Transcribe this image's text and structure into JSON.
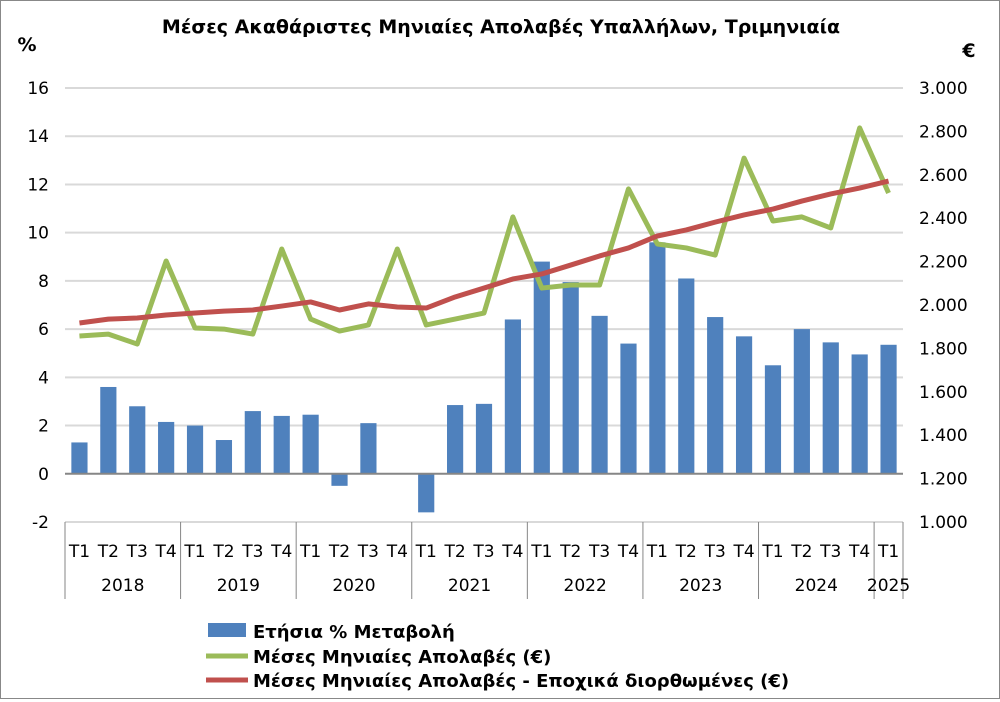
{
  "chart_data": {
    "type": "bar+line",
    "title": "Μέσες Ακαθάριστες Μηνιαίες Απολαβές Υπαλλήλων, Τριμηνιαία",
    "ylabel_left": "%",
    "ylabel_right": "€",
    "ylim_left": [
      -2,
      16
    ],
    "yticks_left": [
      "-2",
      "0",
      "2",
      "4",
      "6",
      "8",
      "10",
      "12",
      "14",
      "16"
    ],
    "ylim_right": [
      1000,
      3000
    ],
    "yticks_right": [
      "1.000",
      "1.200",
      "1.400",
      "1.600",
      "1.800",
      "2.000",
      "2.200",
      "2.400",
      "2.600",
      "2.800",
      "3.000"
    ],
    "grid": true,
    "quarters": [
      "T1",
      "T2",
      "T3",
      "T4",
      "T1",
      "T2",
      "T3",
      "T4",
      "T1",
      "T2",
      "T3",
      "T4",
      "T1",
      "T2",
      "T3",
      "T4",
      "T1",
      "T2",
      "T3",
      "T4",
      "T1",
      "T2",
      "T3",
      "T4",
      "T1",
      "T2",
      "T3",
      "T4",
      "T1"
    ],
    "years": [
      "2018",
      "2019",
      "2020",
      "2021",
      "2022",
      "2023",
      "2024",
      "2025"
    ],
    "series": [
      {
        "name": "Ετήσια % Μεταβολή",
        "type": "bar",
        "axis": "left",
        "color": "#4f81bd",
        "values": [
          1.3,
          3.6,
          2.8,
          2.15,
          2.0,
          1.4,
          2.6,
          2.4,
          2.45,
          -0.5,
          2.1,
          0,
          -1.6,
          2.85,
          2.9,
          6.4,
          8.8,
          7.95,
          6.55,
          5.4,
          9.6,
          8.1,
          6.5,
          5.7,
          4.5,
          6.0,
          5.45,
          4.95,
          5.35
        ]
      },
      {
        "name": "Μέσες Μηνιαίες Απολαβές (€)",
        "type": "line",
        "axis": "right",
        "color": "#9bbb59",
        "values": [
          1857,
          1866,
          1820,
          2203,
          1894,
          1889,
          1866,
          2258,
          1935,
          1880,
          1908,
          2258,
          1908,
          1935,
          1963,
          2406,
          2078,
          2092,
          2092,
          2535,
          2281,
          2263,
          2230,
          2677,
          2387,
          2406,
          2355,
          2816,
          2516
        ]
      },
      {
        "name": "Μέσες Μηνιαίες Απολαβές - Εποχικά διορθωμένες (€)",
        "type": "line",
        "axis": "right",
        "color": "#c0504d",
        "values": [
          1917,
          1935,
          1940,
          1954,
          1963,
          1972,
          1977,
          1995,
          2014,
          1977,
          2005,
          1991,
          1986,
          2037,
          2078,
          2120,
          2143,
          2184,
          2226,
          2263,
          2318,
          2346,
          2382,
          2415,
          2442,
          2479,
          2512,
          2539,
          2571
        ]
      }
    ],
    "legend": "bottom"
  }
}
